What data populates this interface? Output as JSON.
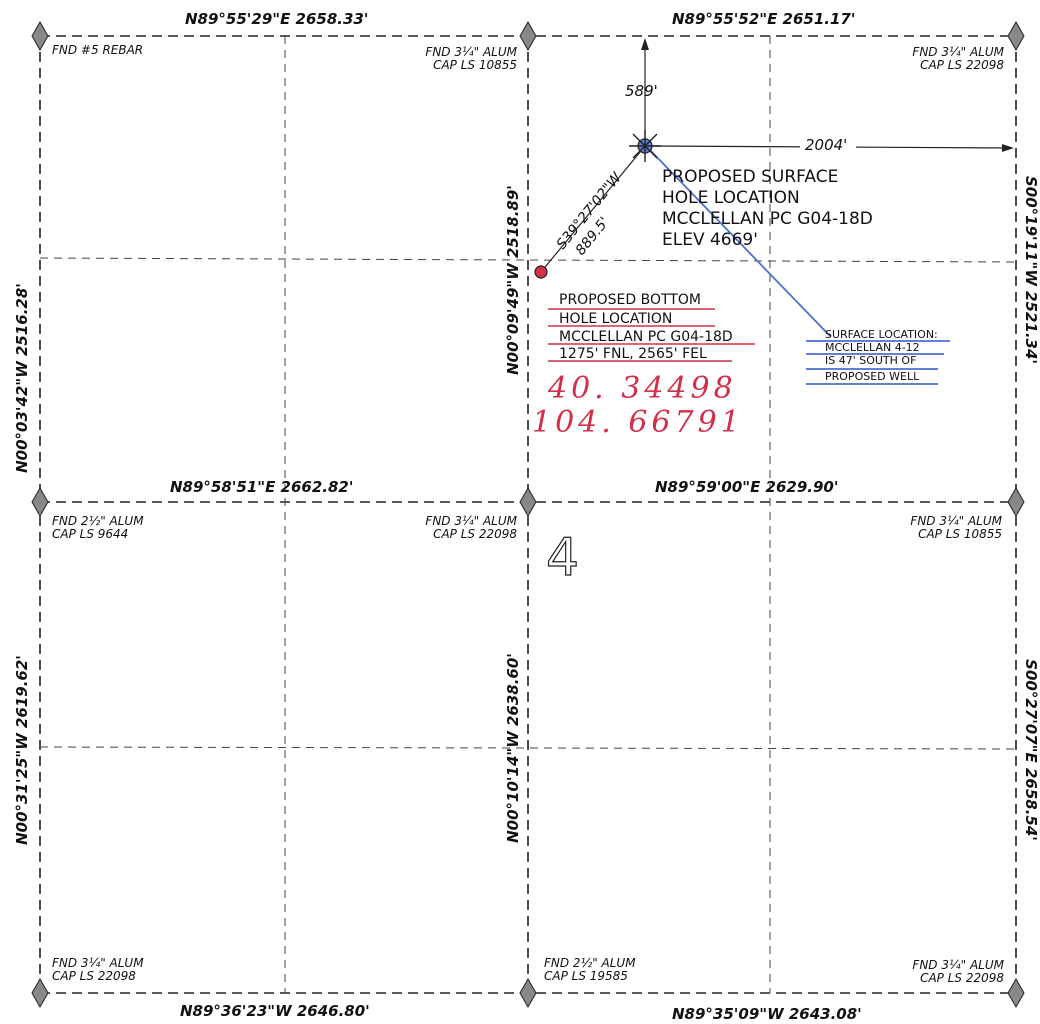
{
  "bearings": {
    "top_left": "N89°55'29\"E   2658.33'",
    "top_right": "N89°55'52\"E   2651.17'",
    "mid_left": "N89°58'51\"E   2662.82'",
    "mid_right": "N89°59'00\"E   2629.90'",
    "bottom_left": "N89°36'23\"W   2646.80'",
    "bottom_right": "N89°35'09\"W   2643.08'",
    "left_upper": "N00°03'42\"W   2516.28'",
    "left_lower": "N00°31'25\"W   2619.62'",
    "center_upper": "N00°09'49\"W   2518.89'",
    "center_lower": "N00°10'14\"W   2638.60'",
    "right_upper": "S00°19'11\"W   2521.34'",
    "right_lower": "S00°27'07\"E   2658.54'"
  },
  "monuments": {
    "tl": "FND #5 REBAR",
    "tc": [
      "FND 3¼\" ALUM",
      "CAP LS 10855"
    ],
    "tr": [
      "FND 3¼\" ALUM",
      "CAP LS 22098"
    ],
    "ml": [
      "FND 2½\" ALUM",
      "CAP LS 9644"
    ],
    "mc": [
      "FND 3¼\" ALUM",
      "CAP LS 22098"
    ],
    "mr": [
      "FND 3¼\" ALUM",
      "CAP LS 10855"
    ],
    "bl": [
      "FND 3¼\" ALUM",
      "CAP LS 22098"
    ],
    "bc": [
      "FND 2½\" ALUM",
      "CAP LS 19585"
    ],
    "br": [
      "FND 3¼\" ALUM",
      "CAP LS 22098"
    ]
  },
  "dims": {
    "north": "589'",
    "east": "2004'",
    "diag_bearing": "S39°27'02\"W",
    "diag_dist": "889.5'"
  },
  "surface": [
    "PROPOSED SURFACE",
    "HOLE LOCATION",
    "MCCLELLAN PC G04-18D",
    "ELEV 4669'"
  ],
  "bottom": [
    "PROPOSED BOTTOM",
    "HOLE LOCATION",
    "MCCLELLAN PC G04-18D",
    "1275' FNL, 2565' FEL"
  ],
  "handwritten": [
    "40. 34498",
    "104. 66791"
  ],
  "section_number": "4",
  "surface_note": [
    "SURFACE LOCATION:",
    "MCCLELLAN 4-12",
    "IS 47' SOUTH OF",
    "PROPOSED WELL"
  ],
  "colors": {
    "ink": "#222222",
    "red": "#d0304a",
    "blue": "#4a6fcf"
  }
}
